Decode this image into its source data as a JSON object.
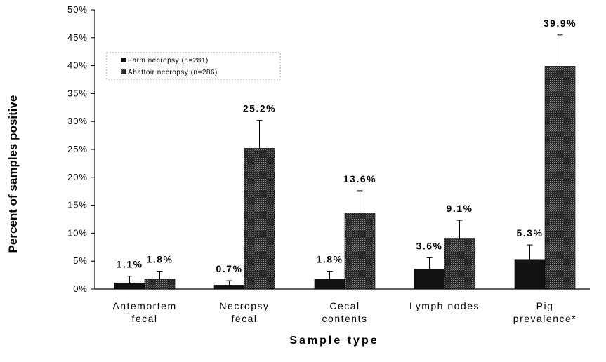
{
  "chart_data": {
    "type": "bar",
    "ylabel": "Percent of samples positive",
    "xlabel": "Sample type",
    "ylim": [
      0,
      50
    ],
    "yticks": [
      "0%",
      "5%",
      "10%",
      "15%",
      "20%",
      "25%",
      "30%",
      "35%",
      "40%",
      "45%",
      "50%"
    ],
    "categories": [
      [
        "Antemortem",
        "fecal"
      ],
      [
        "Necropsy",
        "fecal"
      ],
      [
        "Cecal",
        "contents"
      ],
      [
        "Lymph nodes"
      ],
      [
        "Pig",
        "prevalence*"
      ]
    ],
    "series": [
      {
        "name": "Farm necropsy (n=281)",
        "color": "#111111",
        "values": [
          1.1,
          0.7,
          1.8,
          3.6,
          5.3
        ],
        "error": [
          1.2,
          0.8,
          1.4,
          2.0,
          2.6
        ],
        "labels": [
          "1.1%",
          "0.7%",
          "1.8%",
          "3.6%",
          "5.3%"
        ]
      },
      {
        "name": "Abattoir necropsy (n=286)",
        "color": "#3a3a3a",
        "values": [
          1.8,
          25.2,
          13.6,
          9.1,
          39.9
        ],
        "error": [
          1.4,
          5.0,
          4.0,
          3.2,
          5.6
        ],
        "labels": [
          "1.8%",
          "25.2%",
          "13.6%",
          "9.1%",
          "39.9%"
        ]
      }
    ],
    "legend_position": "top-left",
    "grid": false
  }
}
